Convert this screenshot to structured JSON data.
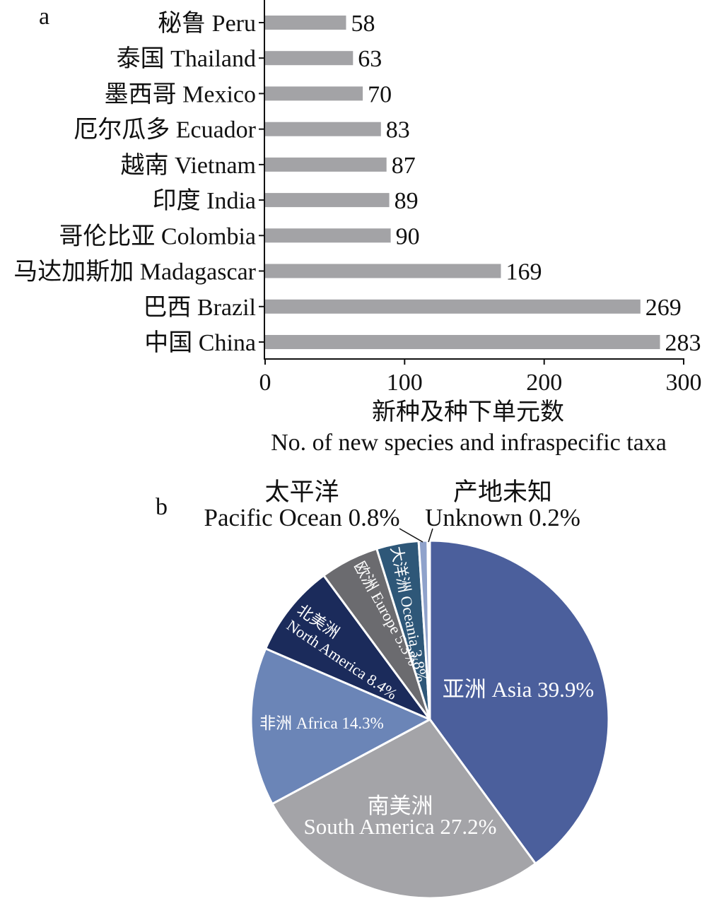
{
  "chart_data": [
    {
      "panel_label": "a",
      "type": "bar",
      "orientation": "horizontal",
      "categories": [
        "秘鲁 Peru",
        "泰国 Thailand",
        "墨西哥 Mexico",
        "厄尔瓜多 Ecuador",
        "越南 Vietnam",
        "印度 India",
        "哥伦比亚 Colombia",
        "马达加斯加 Madagascar",
        "巴西 Brazil",
        "中国 China"
      ],
      "values": [
        58,
        63,
        70,
        83,
        87,
        89,
        90,
        169,
        269,
        283
      ],
      "xlabel": [
        "新种及种下单元数",
        "No. of new species and infraspecific taxa"
      ],
      "xlim": [
        0,
        300
      ],
      "xticks": [
        0,
        100,
        200,
        300
      ],
      "bar_color": "#a3a3a6",
      "grid": false,
      "legend": "none"
    },
    {
      "panel_label": "b",
      "type": "pie",
      "slices": [
        {
          "value": 39.9,
          "label": [
            "亚洲 Asia 39.9%"
          ],
          "color": "#4b5f9c"
        },
        {
          "value": 27.2,
          "label": [
            "南美洲",
            "South America 27.2%"
          ],
          "color": "#a4a4a8"
        },
        {
          "value": 14.3,
          "label": [
            "非洲 Africa 14.3%"
          ],
          "color": "#6b85b7"
        },
        {
          "value": 8.4,
          "label": [
            "北美洲",
            "North America 8.4%"
          ],
          "color": "#1b2b5b"
        },
        {
          "value": 5.3,
          "label": [
            "欧洲 Europe 5.3%"
          ],
          "color": "#6b6b6f"
        },
        {
          "value": 3.8,
          "label": [
            "大洋洲 Oceania 3.8%"
          ],
          "color": "#2e5778"
        },
        {
          "value": 0.8,
          "label": [
            "太平洋",
            "Pacific Ocean 0.8%"
          ],
          "color": "#8fa2cb"
        },
        {
          "value": 0.2,
          "label": [
            "产地未知",
            "Unknown 0.2%"
          ],
          "color": "#d5dbe9"
        }
      ],
      "slice_border_color": "#ffffff",
      "legend": "none"
    }
  ]
}
